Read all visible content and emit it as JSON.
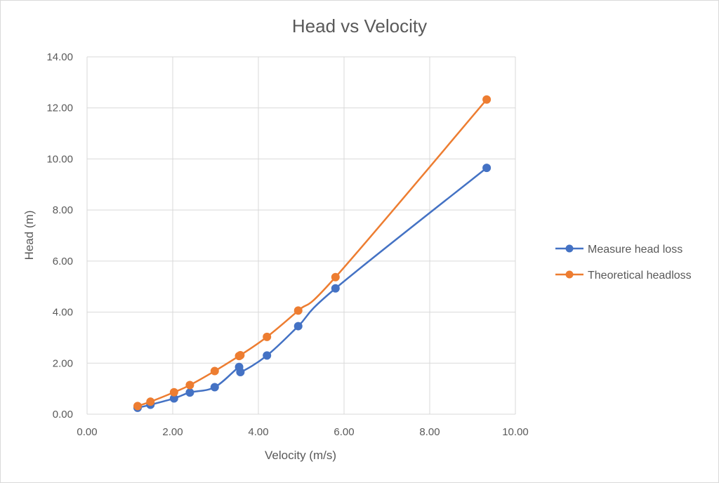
{
  "chart_data": {
    "type": "scatter",
    "title": "Head vs Velocity",
    "xlabel": "Velocity (m/s)",
    "ylabel": "Head (m)",
    "xlim": [
      0,
      10
    ],
    "ylim": [
      0,
      14
    ],
    "x_ticks": [
      "0.00",
      "2.00",
      "4.00",
      "6.00",
      "8.00",
      "10.00"
    ],
    "y_ticks": [
      "0.00",
      "2.00",
      "4.00",
      "6.00",
      "8.00",
      "10.00",
      "12.00",
      "14.00"
    ],
    "grid": true,
    "legend_position": "right",
    "series": [
      {
        "name": "Measure head loss",
        "color": "#4472c4",
        "x": [
          1.18,
          1.48,
          2.03,
          2.4,
          2.98,
          3.55,
          3.58,
          4.2,
          4.93,
          5.8,
          9.33
        ],
        "y": [
          0.25,
          0.37,
          0.62,
          0.85,
          1.06,
          1.85,
          1.65,
          2.3,
          3.45,
          4.93,
          9.65
        ]
      },
      {
        "name": "Theoretical headloss",
        "color": "#ed7d31",
        "x": [
          1.18,
          1.48,
          2.03,
          2.4,
          2.98,
          3.55,
          3.58,
          4.2,
          4.93,
          5.8,
          9.33
        ],
        "y": [
          0.32,
          0.49,
          0.86,
          1.14,
          1.69,
          2.28,
          2.31,
          3.03,
          4.06,
          5.37,
          12.33
        ]
      }
    ]
  }
}
